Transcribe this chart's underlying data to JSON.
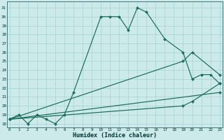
{
  "xlabel": "Humidex (Indice chaleur)",
  "bg_color": "#cceaea",
  "grid_color": "#aad4d4",
  "line_color": "#1a6b5a",
  "xlim": [
    -0.3,
    23.3
  ],
  "ylim": [
    17.6,
    31.7
  ],
  "xticks": [
    0,
    1,
    2,
    3,
    4,
    5,
    6,
    7,
    8,
    9,
    10,
    11,
    12,
    13,
    14,
    15,
    16,
    17,
    18,
    19,
    20,
    21,
    22,
    23
  ],
  "yticks": [
    18,
    19,
    20,
    21,
    22,
    23,
    24,
    25,
    26,
    27,
    28,
    29,
    30,
    31
  ],
  "curve1_x": [
    0,
    1,
    2,
    3,
    4,
    5,
    6,
    7,
    10,
    11,
    12,
    13,
    14,
    15,
    17,
    19,
    20,
    21,
    22,
    23
  ],
  "curve1_y": [
    18.5,
    19.0,
    18.0,
    19.0,
    18.5,
    18.0,
    19.0,
    21.5,
    30.0,
    30.0,
    30.0,
    28.5,
    31.0,
    30.5,
    27.5,
    26.0,
    23.0,
    23.5,
    23.5,
    22.5
  ],
  "curve2_x": [
    0,
    23
  ],
  "curve2_y": [
    18.5,
    21.5
  ],
  "curve3_x": [
    0,
    19,
    20,
    23
  ],
  "curve3_y": [
    18.5,
    20.0,
    20.5,
    22.5
  ],
  "curve4_x": [
    0,
    19,
    20,
    23
  ],
  "curve4_y": [
    18.5,
    25.0,
    26.0,
    23.5
  ]
}
